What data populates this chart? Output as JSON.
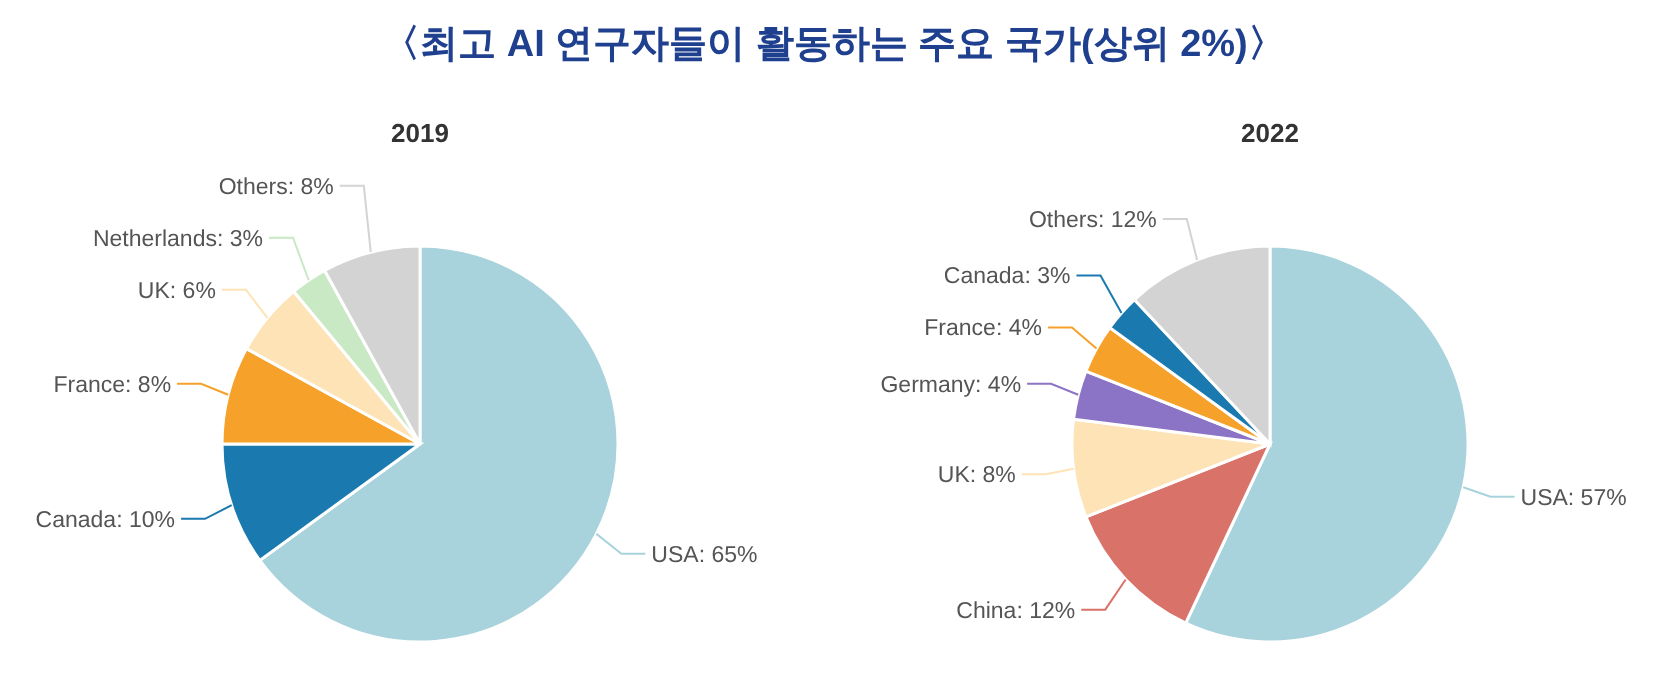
{
  "chart_data": [
    {
      "type": "other",
      "title": "〈최고 AI 연구자들이 활동하는 주요 국가(상위 2%)〉"
    },
    {
      "type": "pie",
      "title": "2019",
      "categories": [
        "USA",
        "Canada",
        "France",
        "UK",
        "Netherlands",
        "Others"
      ],
      "values": [
        65,
        10,
        8,
        6,
        3,
        8
      ],
      "colors": [
        "#a9d3dc",
        "#1a7ab0",
        "#f5a12a",
        "#fde3b5",
        "#c9e8c4",
        "#d3d3d3"
      ],
      "value_labels": [
        ": 65%",
        ": 10%",
        ": 8%",
        ": 6%",
        ": 3%",
        ": 8%"
      ]
    },
    {
      "type": "pie",
      "title": "2022",
      "categories": [
        "USA",
        "China",
        "UK",
        "Germany",
        "France",
        "Canada",
        "Others"
      ],
      "values": [
        57,
        12,
        8,
        4,
        4,
        3,
        12
      ],
      "colors": [
        "#a9d3dc",
        "#d9736a",
        "#fde3b5",
        "#8b73c6",
        "#f5a12a",
        "#1a7ab0",
        "#d3d3d3"
      ],
      "value_labels": [
        ": 57%",
        ": 12%",
        ": 8%",
        ": 4%",
        ": 4%",
        ": 3%",
        ": 12%"
      ]
    }
  ]
}
